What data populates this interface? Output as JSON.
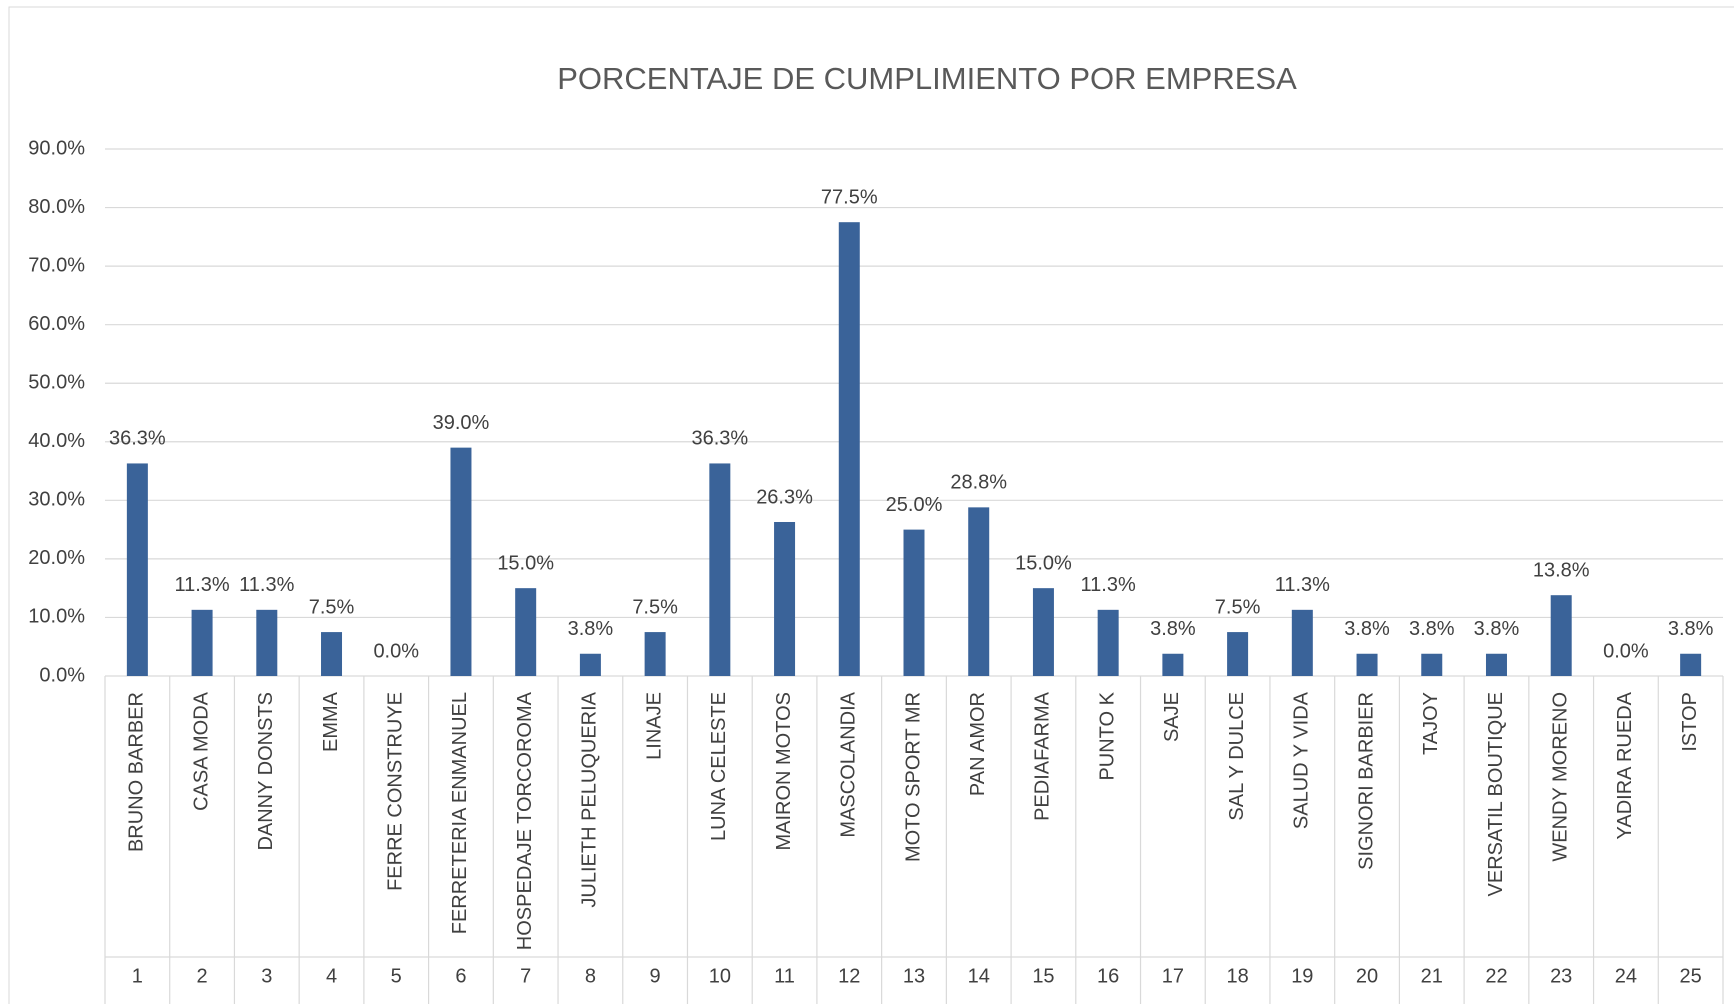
{
  "chart_data": {
    "type": "bar",
    "title": "PORCENTAJE DE CUMPLIMIENTO POR EMPRESA",
    "categories": [
      "BRUNO BARBER",
      "CASA MODA",
      "DANNY DONSTS",
      "EMMA",
      "FERRE CONSTRUYE",
      "FERRETERIA ENMANUEL",
      "HOSPEDAJE TORCOROMA",
      "JULIETH PELUQUERIA",
      "LINAJE",
      "LUNA CELESTE",
      "MAIRON MOTOS",
      "MASCOLANDIA",
      "MOTO SPORT MR",
      "PAN AMOR",
      "PEDIAFARMA",
      "PUNTO K",
      "SAJE",
      "SAL Y DULCE",
      "SALUD Y VIDA",
      "SIGNORI BARBIER",
      "TAJOY",
      "VERSATIL BOUTIQUE",
      "WENDY MORENO",
      "YADIRA RUEDA",
      "ISTOP"
    ],
    "category_numbers": [
      1,
      2,
      3,
      4,
      5,
      6,
      7,
      8,
      9,
      10,
      11,
      12,
      13,
      14,
      15,
      16,
      17,
      18,
      19,
      20,
      21,
      22,
      23,
      24,
      25
    ],
    "values": [
      36.3,
      11.3,
      11.3,
      7.5,
      0,
      39.0,
      15.0,
      3.8,
      7.5,
      36.3,
      26.3,
      77.5,
      25.0,
      28.8,
      15.0,
      11.3,
      3.8,
      7.5,
      11.3,
      3.8,
      3.8,
      3.8,
      13.8,
      0,
      3.8
    ],
    "value_labels": [
      "36.3%",
      "11.3%",
      "11.3%",
      "7.5%",
      "0.0%",
      "39.0%",
      "15.0%",
      "3.8%",
      "7.5%",
      "36.3%",
      "26.3%",
      "77.5%",
      "25.0%",
      "28.8%",
      "15.0%",
      "11.3%",
      "3.8%",
      "7.5%",
      "11.3%",
      "3.8%",
      "3.8%",
      "3.8%",
      "13.8%",
      "0.0%",
      "3.8%"
    ],
    "color": "#3a6399",
    "ylim": [
      0,
      90
    ],
    "yticks": [
      {
        "value": 0,
        "label": "0.0%"
      },
      {
        "value": 10,
        "label": "10.0%"
      },
      {
        "value": 20,
        "label": "20.0%"
      },
      {
        "value": 30,
        "label": "30.0%"
      },
      {
        "value": 40,
        "label": "40.0%"
      },
      {
        "value": 50,
        "label": "50.0%"
      },
      {
        "value": 60,
        "label": "60.0%"
      },
      {
        "value": 70,
        "label": "70.0%"
      },
      {
        "value": 80,
        "label": "80.0%"
      },
      {
        "value": 90,
        "label": "90.0%"
      }
    ],
    "grid": true
  }
}
